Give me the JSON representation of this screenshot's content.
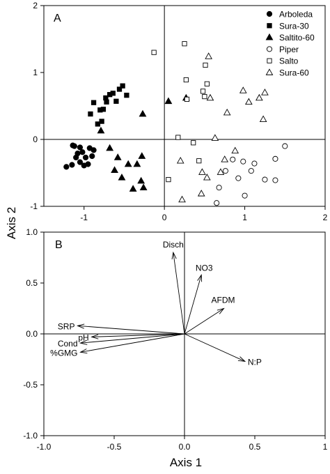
{
  "figure": {
    "y_axis_label": "Axis 2",
    "x_axis_label": "Axis 1"
  },
  "chart_data": [
    {
      "panel_label": "A",
      "type": "scatter",
      "xlim": [
        -1.5,
        2
      ],
      "ylim": [
        -1,
        2
      ],
      "xticks": [
        -1,
        0,
        1,
        2
      ],
      "yticks": [
        -1,
        0,
        1,
        2
      ],
      "xtick_labels": [
        "-1",
        "0",
        "1",
        "2"
      ],
      "ytick_labels": [
        "-1",
        "0",
        "1",
        "2"
      ],
      "zero_lines": true,
      "legend_position": "top-right",
      "series": [
        {
          "name": "Arboleda",
          "marker": "filled-circle",
          "points": [
            [
              -1.22,
              -0.41
            ],
            [
              -1.15,
              -0.38
            ],
            [
              -1.14,
              -0.09
            ],
            [
              -1.12,
              -0.1
            ],
            [
              -1.1,
              -0.27
            ],
            [
              -1.08,
              -0.21
            ],
            [
              -1.05,
              -0.12
            ],
            [
              -1.05,
              -0.34
            ],
            [
              -1.02,
              -0.19
            ],
            [
              -1.0,
              -0.39
            ],
            [
              -0.98,
              -0.27
            ],
            [
              -0.95,
              -0.37
            ],
            [
              -0.93,
              -0.13
            ],
            [
              -0.9,
              -0.25
            ],
            [
              -0.88,
              -0.16
            ]
          ]
        },
        {
          "name": "Sura-30",
          "marker": "filled-square",
          "points": [
            [
              -0.92,
              0.38
            ],
            [
              -0.88,
              0.55
            ],
            [
              -0.83,
              0.23
            ],
            [
              -0.8,
              0.44
            ],
            [
              -0.78,
              0.27
            ],
            [
              -0.76,
              0.45
            ],
            [
              -0.73,
              0.62
            ],
            [
              -0.72,
              0.56
            ],
            [
              -0.68,
              0.67
            ],
            [
              -0.64,
              0.69
            ],
            [
              -0.6,
              0.57
            ],
            [
              -0.56,
              0.75
            ],
            [
              -0.52,
              0.8
            ],
            [
              -0.47,
              0.66
            ]
          ]
        },
        {
          "name": "Saltito-60",
          "marker": "filled-triangle",
          "points": [
            [
              -0.79,
              0.13
            ],
            [
              -0.68,
              -0.13
            ],
            [
              -0.62,
              -0.46
            ],
            [
              -0.58,
              -0.27
            ],
            [
              -0.53,
              -0.57
            ],
            [
              -0.45,
              -0.37
            ],
            [
              -0.39,
              -0.74
            ],
            [
              -0.34,
              -0.37
            ],
            [
              -0.29,
              -0.62
            ],
            [
              -0.28,
              -0.25
            ],
            [
              -0.27,
              0.38
            ],
            [
              -0.26,
              -0.72
            ],
            [
              0.05,
              0.57
            ],
            [
              0.27,
              0.62
            ]
          ]
        },
        {
          "name": "Piper",
          "marker": "open-circle",
          "points": [
            [
              0.65,
              -0.95
            ],
            [
              0.68,
              -0.72
            ],
            [
              0.76,
              -0.47
            ],
            [
              0.85,
              -0.3
            ],
            [
              0.92,
              -0.58
            ],
            [
              0.98,
              -0.33
            ],
            [
              1.0,
              -0.84
            ],
            [
              1.08,
              -0.47
            ],
            [
              1.12,
              -0.36
            ],
            [
              1.25,
              -0.6
            ],
            [
              1.38,
              -0.29
            ],
            [
              1.38,
              -0.61
            ],
            [
              1.5,
              -0.1
            ]
          ]
        },
        {
          "name": "Salto",
          "marker": "open-square",
          "points": [
            [
              -0.13,
              1.3
            ],
            [
              0.05,
              -0.6
            ],
            [
              0.17,
              0.03
            ],
            [
              0.25,
              1.43
            ],
            [
              0.27,
              0.89
            ],
            [
              0.28,
              0.6
            ],
            [
              0.36,
              -0.05
            ],
            [
              0.43,
              -0.32
            ],
            [
              0.48,
              0.72
            ],
            [
              0.5,
              0.64
            ],
            [
              0.51,
              1.11
            ],
            [
              0.53,
              0.83
            ]
          ]
        },
        {
          "name": "Sura-60",
          "marker": "open-triangle",
          "points": [
            [
              0.2,
              -0.32
            ],
            [
              0.22,
              -0.9
            ],
            [
              0.46,
              -0.81
            ],
            [
              0.47,
              -0.49
            ],
            [
              0.53,
              -0.57
            ],
            [
              0.55,
              1.24
            ],
            [
              0.57,
              0.62
            ],
            [
              0.63,
              0.02
            ],
            [
              0.7,
              -0.49
            ],
            [
              0.75,
              -0.3
            ],
            [
              0.78,
              0.4
            ],
            [
              0.88,
              -0.17
            ],
            [
              0.98,
              0.73
            ],
            [
              1.05,
              0.56
            ],
            [
              1.18,
              0.62
            ],
            [
              1.23,
              0.3
            ],
            [
              1.25,
              0.7
            ]
          ]
        }
      ]
    },
    {
      "panel_label": "B",
      "type": "biplot",
      "xlim": [
        -1.0,
        1.0
      ],
      "ylim": [
        -1.0,
        1.0
      ],
      "xticks": [
        -1.0,
        -0.5,
        0.0,
        0.5,
        1.0
      ],
      "yticks": [
        -1.0,
        -0.5,
        0.0,
        0.5,
        1.0
      ],
      "xtick_labels": [
        "-1.0",
        "-0.5",
        "0.0",
        "0.5",
        "1"
      ],
      "ytick_labels": [
        "-1.0",
        "-0.5",
        "0.0",
        "0.5",
        "1.0"
      ],
      "zero_lines": true,
      "vectors": [
        {
          "label": "Disch",
          "x": -0.08,
          "y": 0.8
        },
        {
          "label": "NO3",
          "x": 0.12,
          "y": 0.58
        },
        {
          "label": "AFDM",
          "x": 0.28,
          "y": 0.25
        },
        {
          "label": "N:P",
          "x": 0.43,
          "y": -0.27
        },
        {
          "label": "SRP",
          "x": -0.76,
          "y": 0.08
        },
        {
          "label": "pH",
          "x": -0.66,
          "y": -0.03
        },
        {
          "label": "Cond",
          "x": -0.74,
          "y": -0.09
        },
        {
          "label": "%GMG",
          "x": -0.74,
          "y": -0.18
        }
      ]
    }
  ]
}
